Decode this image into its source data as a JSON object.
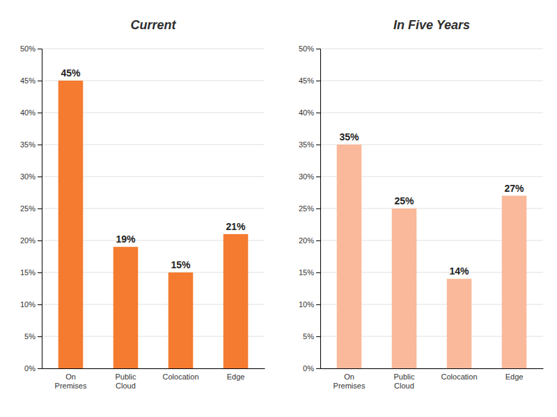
{
  "chart_data": [
    {
      "type": "bar",
      "title": "Current",
      "categories": [
        "On\nPremises",
        "Public\nCloud",
        "Colocation",
        "Edge"
      ],
      "values": [
        45,
        19,
        15,
        21
      ],
      "value_labels": [
        "45%",
        "19%",
        "15%",
        "21%"
      ],
      "color": "#F47B30",
      "ylim": [
        0,
        50
      ],
      "yticks": [
        {
          "value": 0,
          "label": "0%"
        },
        {
          "value": 5,
          "label": "5%"
        },
        {
          "value": 10,
          "label": "10%"
        },
        {
          "value": 15,
          "label": "15%"
        },
        {
          "value": 20,
          "label": "20%"
        },
        {
          "value": 25,
          "label": "25%"
        },
        {
          "value": 30,
          "label": "30%"
        },
        {
          "value": 35,
          "label": "35%"
        },
        {
          "value": 40,
          "label": "40%"
        },
        {
          "value": 45,
          "label": "45%"
        },
        {
          "value": 50,
          "label": "50%"
        }
      ],
      "grid": true,
      "data_labels": true
    },
    {
      "type": "bar",
      "title": "In Five Years",
      "categories": [
        "On\nPremises",
        "Public\nCloud",
        "Colocation",
        "Edge"
      ],
      "values": [
        35,
        25,
        14,
        27
      ],
      "value_labels": [
        "35%",
        "25%",
        "14%",
        "27%"
      ],
      "color": "#F9B99A",
      "ylim": [
        0,
        50
      ],
      "yticks": [
        {
          "value": 0,
          "label": "0%"
        },
        {
          "value": 5,
          "label": "5%"
        },
        {
          "value": 10,
          "label": "10%"
        },
        {
          "value": 15,
          "label": "15%"
        },
        {
          "value": 20,
          "label": "20%"
        },
        {
          "value": 25,
          "label": "25%"
        },
        {
          "value": 30,
          "label": "30%"
        },
        {
          "value": 35,
          "label": "35%"
        },
        {
          "value": 40,
          "label": "40%"
        },
        {
          "value": 45,
          "label": "45%"
        },
        {
          "value": 50,
          "label": "50%"
        }
      ],
      "grid": true,
      "data_labels": true
    }
  ]
}
